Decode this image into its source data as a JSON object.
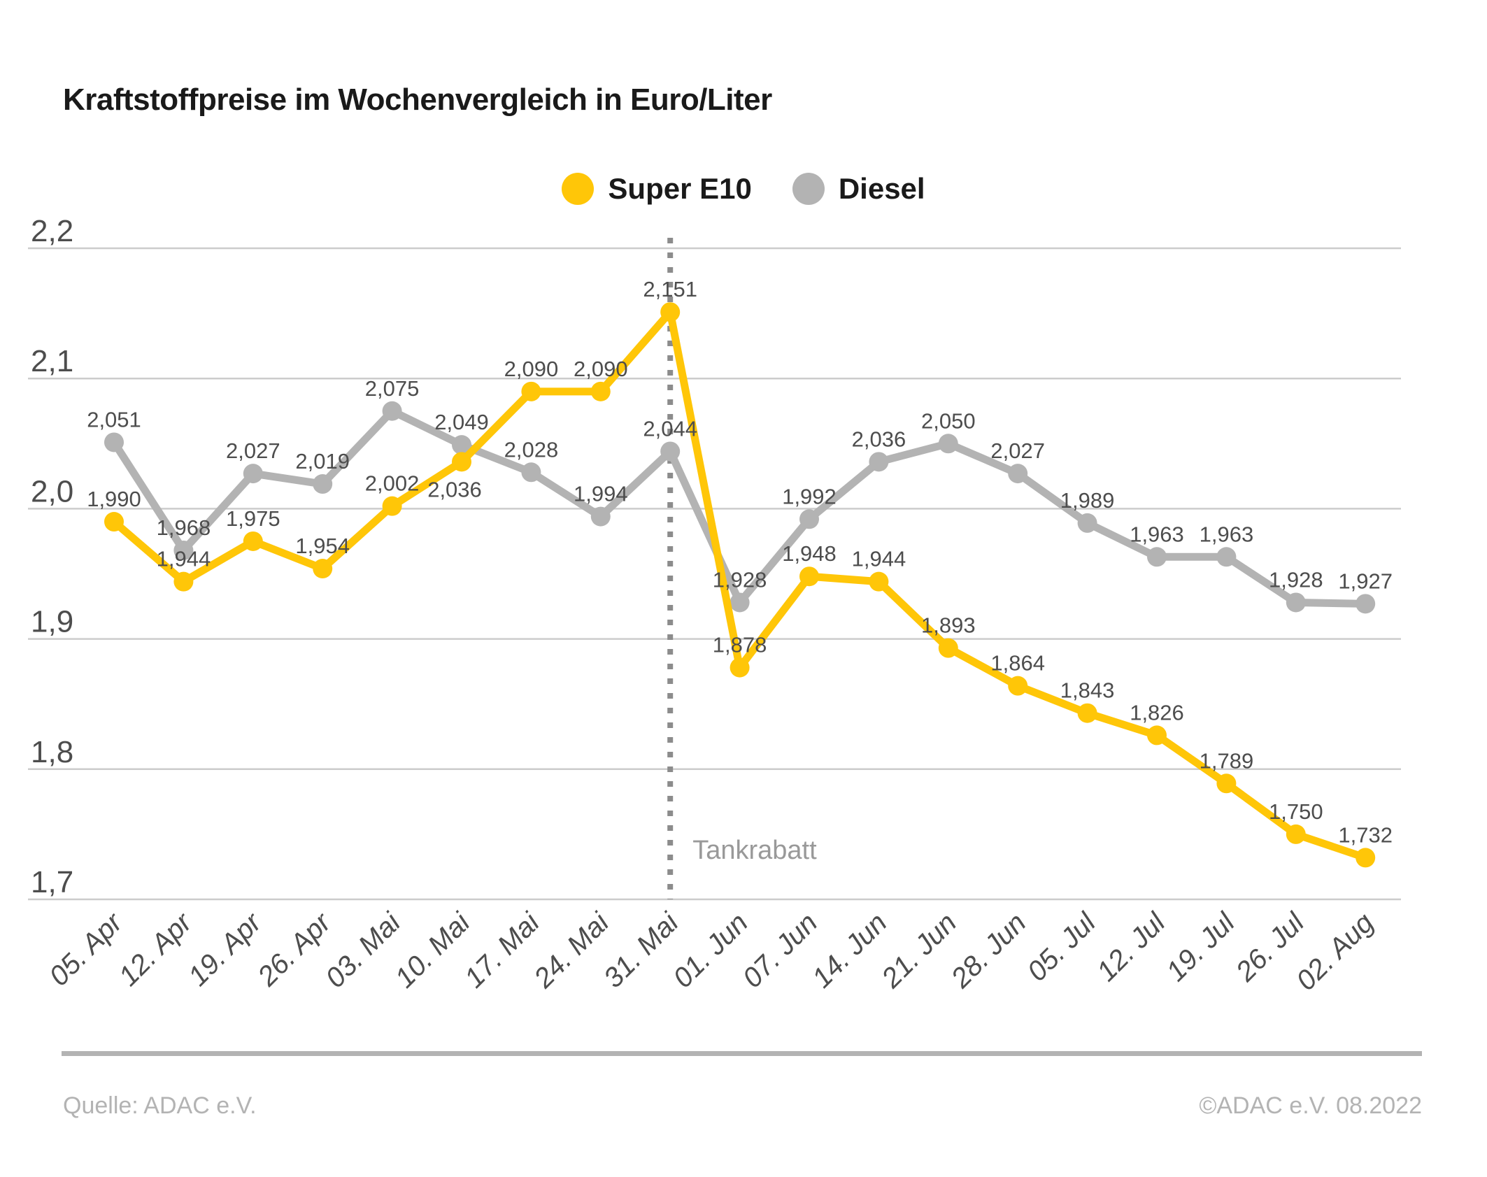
{
  "title": "Kraftstoffpreise im Wochenvergleich in Euro/Liter",
  "legend": [
    {
      "label": "Super E10",
      "color": "#FFC608"
    },
    {
      "label": "Diesel",
      "color": "#B3B3B3"
    }
  ],
  "footer": {
    "source": "Quelle: ADAC e.V.",
    "copyright": "©ADAC e.V.  08.2022"
  },
  "chart_data": {
    "type": "line",
    "title": "Kraftstoffpreise im Wochenvergleich in Euro/Liter",
    "categories": [
      "05. Apr",
      "12. Apr",
      "19. Apr",
      "26. Apr",
      "03. Mai",
      "10. Mai",
      "17. Mai",
      "24. Mai",
      "31. Mai",
      "01. Jun",
      "07. Jun",
      "14. Jun",
      "21. Jun",
      "28. Jun",
      "05. Jul",
      "12. Jul",
      "19. Jul",
      "26. Jul",
      "02. Aug"
    ],
    "series": [
      {
        "name": "Super E10",
        "color": "#FFC608",
        "values": [
          1.99,
          1.944,
          1.975,
          1.954,
          2.002,
          2.036,
          2.09,
          2.09,
          2.151,
          1.878,
          1.948,
          1.944,
          1.893,
          1.864,
          1.843,
          1.826,
          1.789,
          1.75,
          1.732
        ]
      },
      {
        "name": "Diesel",
        "color": "#B3B3B3",
        "values": [
          2.051,
          1.968,
          2.027,
          2.019,
          2.075,
          2.049,
          2.028,
          1.994,
          2.044,
          1.928,
          1.992,
          2.036,
          2.05,
          2.027,
          1.989,
          1.963,
          1.963,
          1.928,
          1.927
        ]
      }
    ],
    "ylim": [
      1.7,
      2.2
    ],
    "y_ticks": [
      2.2,
      2.1,
      2.0,
      1.9,
      1.8,
      1.7
    ],
    "decimal_separator": ",",
    "grid": true,
    "value_labels": true,
    "legend_position": "top-center",
    "vline": {
      "at": "31. Mai",
      "label": "Tankrabatt",
      "style": "dotted"
    }
  },
  "colors": {
    "grid": "#CCCCCC",
    "axis_text": "#4D4D4D",
    "value_label": "#4D4D4D",
    "vline": "#8C8C8C",
    "annotation": "#999999",
    "footer": "#B3B3B3",
    "title": "#1A1A1A"
  }
}
